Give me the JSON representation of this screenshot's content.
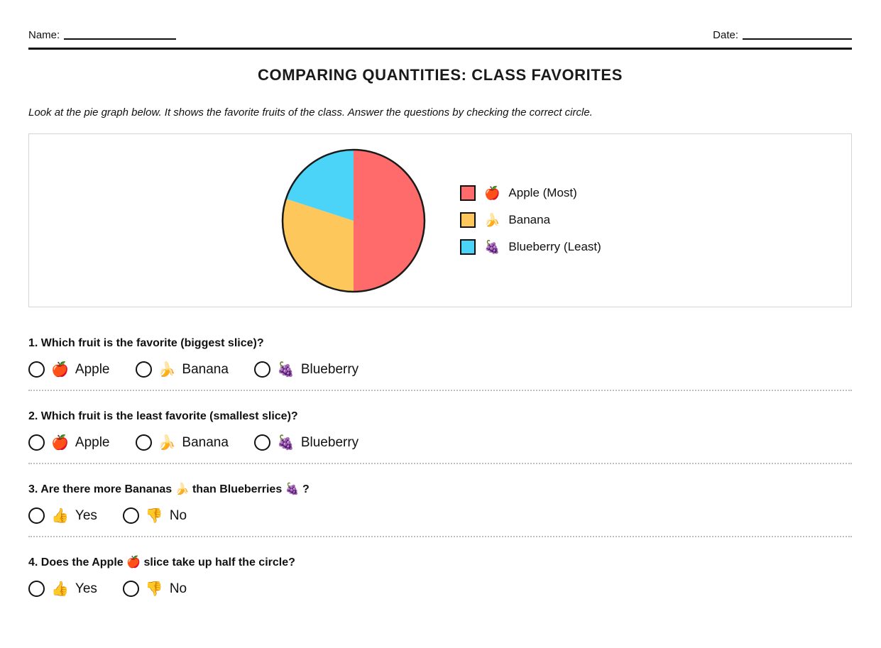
{
  "page": {
    "name_label": "Name:",
    "date_label": "Date:",
    "title": "COMPARING QUANTITIES: CLASS FAVORITES",
    "instruction": "Look at the pie graph below. It shows the favorite fruits of the class. Answer the questions by checking the correct circle."
  },
  "chart_data": {
    "type": "pie",
    "labels": [
      "Apple",
      "Banana",
      "Blueberry"
    ],
    "values": [
      50,
      30,
      20
    ],
    "unit": "percent",
    "colors": [
      "#FF6B6B",
      "#FDC75B",
      "#4CD4F8"
    ],
    "outline_color": "#1a1a1a",
    "start_angle_deg": 0,
    "direction": "clockwise",
    "legend_position": "right",
    "legend": [
      {
        "icon": "🍎",
        "label": "Apple (Most)",
        "color": "#FF6B6B"
      },
      {
        "icon": "🍌",
        "label": "Banana",
        "color": "#FDC75B"
      },
      {
        "icon": "🍇",
        "label": "Blueberry (Least)",
        "color": "#4CD4F8"
      }
    ]
  },
  "questions": [
    {
      "text": "1. Which fruit is the favorite (biggest slice)?",
      "options": [
        {
          "icon": "🍎",
          "label": "Apple"
        },
        {
          "icon": "🍌",
          "label": "Banana"
        },
        {
          "icon": "🍇",
          "label": "Blueberry"
        }
      ]
    },
    {
      "text": "2. Which fruit is the least favorite (smallest slice)?",
      "options": [
        {
          "icon": "🍎",
          "label": "Apple"
        },
        {
          "icon": "🍌",
          "label": "Banana"
        },
        {
          "icon": "🍇",
          "label": "Blueberry"
        }
      ]
    },
    {
      "text": "3. Are there more Bananas 🍌 than Blueberries 🍇 ?",
      "options": [
        {
          "icon": "👍",
          "label": "Yes"
        },
        {
          "icon": "👎",
          "label": "No"
        }
      ]
    },
    {
      "text": "4. Does the Apple 🍎 slice take up half the circle?",
      "options": [
        {
          "icon": "👍",
          "label": "Yes"
        },
        {
          "icon": "👎",
          "label": "No"
        }
      ]
    }
  ]
}
